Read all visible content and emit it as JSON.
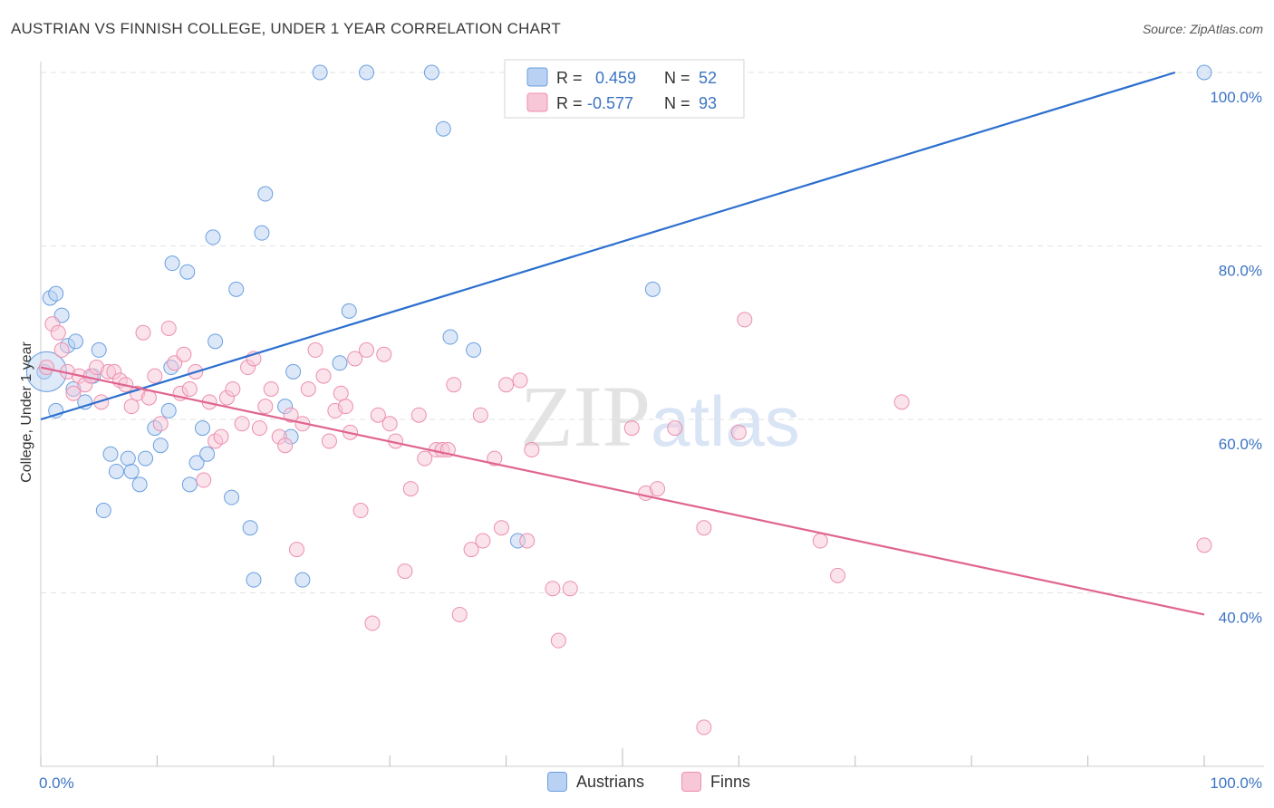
{
  "title": "AUSTRIAN VS FINNISH COLLEGE, UNDER 1 YEAR CORRELATION CHART",
  "source": "Source: ZipAtlas.com",
  "watermark": {
    "zip": "ZIP",
    "atlas": "atlas"
  },
  "chart_data": {
    "type": "scatter",
    "ylabel": "College, Under 1 year",
    "xlim": [
      0,
      100
    ],
    "ylim": [
      20,
      100
    ],
    "x_tick_labels": [
      {
        "value": 0,
        "label": "0.0%"
      },
      {
        "value": 100,
        "label": "100.0%"
      }
    ],
    "y_tick_labels": [
      {
        "value": 40,
        "label": "40.0%"
      },
      {
        "value": 60,
        "label": "60.0%"
      },
      {
        "value": 80,
        "label": "80.0%"
      },
      {
        "value": 100,
        "label": "100.0%"
      }
    ],
    "grid": true,
    "legend_placement": "top-center",
    "series": [
      {
        "name": "Austrians",
        "color": "#6a9fe0",
        "fill": "#b9d1f2",
        "line_color": "#2b6fce",
        "R": "0.459",
        "N": "52",
        "trend": [
          [
            0,
            60
          ],
          [
            97.5,
            100
          ]
        ],
        "points": [
          [
            0.3,
            65.5
          ],
          [
            0.8,
            74
          ],
          [
            1.3,
            74.5
          ],
          [
            1.8,
            72
          ],
          [
            2.3,
            68.5
          ],
          [
            3,
            69
          ],
          [
            2.8,
            63.5
          ],
          [
            3.8,
            62
          ],
          [
            4.5,
            65
          ],
          [
            5,
            68
          ],
          [
            7.5,
            55.5
          ],
          [
            5.4,
            49.5
          ],
          [
            6,
            56
          ],
          [
            6.5,
            54
          ],
          [
            7.8,
            54
          ],
          [
            8.5,
            52.5
          ],
          [
            9,
            55.5
          ],
          [
            9.8,
            59
          ],
          [
            10.3,
            57
          ],
          [
            11.2,
            66
          ],
          [
            11,
            61
          ],
          [
            11.3,
            78
          ],
          [
            12.6,
            77
          ],
          [
            12.8,
            52.5
          ],
          [
            13.4,
            55
          ],
          [
            13.9,
            59
          ],
          [
            14.3,
            56
          ],
          [
            14.8,
            81
          ],
          [
            15,
            69
          ],
          [
            16.4,
            51
          ],
          [
            16.8,
            75
          ],
          [
            18,
            47.5
          ],
          [
            18.3,
            41.5
          ],
          [
            19,
            81.5
          ],
          [
            19.3,
            86
          ],
          [
            21,
            61.5
          ],
          [
            21.5,
            58
          ],
          [
            21.7,
            65.5
          ],
          [
            22.5,
            41.5
          ],
          [
            24,
            100
          ],
          [
            25.7,
            66.5
          ],
          [
            26.5,
            72.5
          ],
          [
            28,
            100
          ],
          [
            33.6,
            100
          ],
          [
            34.6,
            93.5
          ],
          [
            35.2,
            69.5
          ],
          [
            37.2,
            68
          ],
          [
            41,
            46
          ],
          [
            52.6,
            75
          ],
          [
            100,
            100
          ],
          [
            1.3,
            61
          ],
          [
            0.5,
            65.5
          ]
        ]
      },
      {
        "name": "Finns",
        "color": "#ec8fae",
        "fill": "#f8c7d7",
        "line_color": "#e06490",
        "R": "-0.577",
        "N": "93",
        "trend": [
          [
            0,
            66
          ],
          [
            100,
            37.5
          ]
        ],
        "points": [
          [
            0.5,
            66
          ],
          [
            1,
            71
          ],
          [
            1.5,
            70
          ],
          [
            1.8,
            68
          ],
          [
            2.3,
            65.5
          ],
          [
            2.8,
            63
          ],
          [
            3.3,
            65
          ],
          [
            3.8,
            64
          ],
          [
            4.3,
            65
          ],
          [
            4.8,
            66
          ],
          [
            5.2,
            62
          ],
          [
            5.8,
            65.5
          ],
          [
            6.3,
            65.5
          ],
          [
            6.8,
            64.5
          ],
          [
            7.3,
            64
          ],
          [
            7.8,
            61.5
          ],
          [
            8.3,
            63
          ],
          [
            8.8,
            70
          ],
          [
            9.3,
            62.5
          ],
          [
            9.8,
            65
          ],
          [
            10.3,
            59.5
          ],
          [
            11,
            70.5
          ],
          [
            11.5,
            66.5
          ],
          [
            12,
            63
          ],
          [
            12.3,
            67.5
          ],
          [
            12.8,
            63.5
          ],
          [
            13.3,
            65.5
          ],
          [
            14,
            53
          ],
          [
            14.5,
            62
          ],
          [
            15,
            57.5
          ],
          [
            15.5,
            58
          ],
          [
            16,
            62.5
          ],
          [
            16.5,
            63.5
          ],
          [
            17.3,
            59.5
          ],
          [
            17.8,
            66
          ],
          [
            18.3,
            67
          ],
          [
            18.8,
            59
          ],
          [
            19.3,
            61.5
          ],
          [
            19.8,
            63.5
          ],
          [
            20.5,
            58
          ],
          [
            21,
            57
          ],
          [
            21.5,
            60.5
          ],
          [
            22,
            45
          ],
          [
            22.5,
            59.5
          ],
          [
            23,
            63.5
          ],
          [
            23.6,
            68
          ],
          [
            24.3,
            65
          ],
          [
            24.8,
            57.5
          ],
          [
            25.3,
            61
          ],
          [
            25.8,
            63
          ],
          [
            26.2,
            61.5
          ],
          [
            26.6,
            58.5
          ],
          [
            27,
            67
          ],
          [
            27.5,
            49.5
          ],
          [
            28,
            68
          ],
          [
            28.5,
            36.5
          ],
          [
            29,
            60.5
          ],
          [
            29.5,
            67.5
          ],
          [
            30,
            59.5
          ],
          [
            30.5,
            57.5
          ],
          [
            31.3,
            42.5
          ],
          [
            31.8,
            52
          ],
          [
            32.5,
            60.5
          ],
          [
            33,
            55.5
          ],
          [
            34,
            56.5
          ],
          [
            34.5,
            56.5
          ],
          [
            35,
            56.5
          ],
          [
            35.5,
            64
          ],
          [
            36,
            37.5
          ],
          [
            37,
            45
          ],
          [
            37.8,
            60.5
          ],
          [
            38,
            46
          ],
          [
            39,
            55.5
          ],
          [
            39.6,
            47.5
          ],
          [
            40,
            64
          ],
          [
            41.2,
            64.5
          ],
          [
            41.8,
            46
          ],
          [
            42.2,
            56.5
          ],
          [
            44,
            40.5
          ],
          [
            44.5,
            34.5
          ],
          [
            45.5,
            40.5
          ],
          [
            50.8,
            59
          ],
          [
            52,
            51.5
          ],
          [
            53,
            52
          ],
          [
            54.5,
            59
          ],
          [
            57,
            47.5
          ],
          [
            57,
            24.5
          ],
          [
            60,
            58.5
          ],
          [
            60.5,
            71.5
          ],
          [
            67,
            46
          ],
          [
            68.5,
            42
          ],
          [
            74,
            62
          ],
          [
            100,
            45.5
          ]
        ]
      }
    ]
  },
  "legend": {
    "r_label": "R =",
    "n_label": "N =",
    "rows": [
      {
        "r": "0.459",
        "n": "52"
      },
      {
        "r": "-0.577",
        "n": "93"
      }
    ]
  },
  "bottom_legend": [
    "Austrians",
    "Finns"
  ]
}
